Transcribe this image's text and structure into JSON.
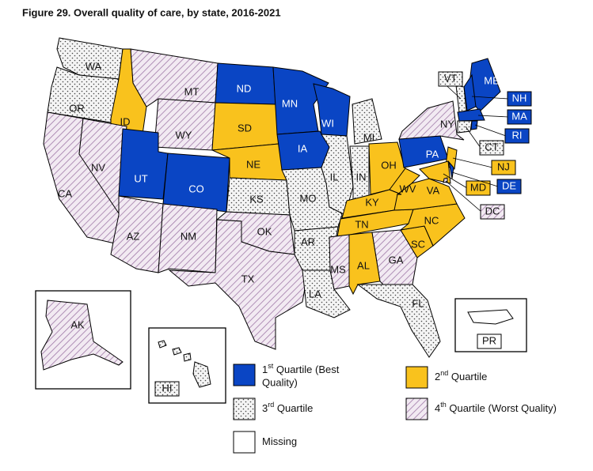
{
  "title": "Figure 29. Overall quality of care, by state, 2016-2021",
  "legend": [
    {
      "num": "1",
      "sup": "st",
      "text": " Quartile (Best",
      "text2": "Quality)",
      "style": "blue"
    },
    {
      "num": "2",
      "sup": "nd",
      "text": " Quartile",
      "style": "yellow"
    },
    {
      "num": "3",
      "sup": "rd",
      "text": " Quartile",
      "style": "dots"
    },
    {
      "num": "4",
      "sup": "th",
      "text": " Quartile (Worst Quality)",
      "style": "hatch"
    },
    {
      "text": "Missing",
      "style": "none"
    }
  ],
  "states": [
    {
      "label": "WA",
      "legend_item": 2
    },
    {
      "label": "OR",
      "legend_item": 2
    },
    {
      "label": "ID",
      "legend_item": 1
    },
    {
      "label": "MT",
      "legend_item": 3
    },
    {
      "label": "WY",
      "legend_item": 3
    },
    {
      "label": "CA",
      "legend_item": 3
    },
    {
      "label": "NV",
      "legend_item": 3
    },
    {
      "label": "UT",
      "legend_item": 0
    },
    {
      "label": "CO",
      "legend_item": 0
    },
    {
      "label": "AZ",
      "legend_item": 3
    },
    {
      "label": "NM",
      "legend_item": 3
    },
    {
      "label": "ND",
      "legend_item": 0
    },
    {
      "label": "SD",
      "legend_item": 1
    },
    {
      "label": "NE",
      "legend_item": 1
    },
    {
      "label": "KS",
      "legend_item": 2
    },
    {
      "label": "OK",
      "legend_item": 3
    },
    {
      "label": "TX",
      "legend_item": 3
    },
    {
      "label": "MN",
      "legend_item": 0
    },
    {
      "label": "IA",
      "legend_item": 0
    },
    {
      "label": "MO",
      "legend_item": 2
    },
    {
      "label": "AR",
      "legend_item": 2
    },
    {
      "label": "LA",
      "legend_item": 2
    },
    {
      "label": "WI",
      "legend_item": 0
    },
    {
      "label": "IL",
      "legend_item": 2
    },
    {
      "label": "MI",
      "legend_item": 2
    },
    {
      "label": "IN",
      "legend_item": 2
    },
    {
      "label": "OH",
      "legend_item": 1
    },
    {
      "label": "KY",
      "legend_item": 1
    },
    {
      "label": "TN",
      "legend_item": 1
    },
    {
      "label": "MS",
      "legend_item": 3
    },
    {
      "label": "AL",
      "legend_item": 1
    },
    {
      "label": "GA",
      "legend_item": 3
    },
    {
      "label": "FL",
      "legend_item": 2
    },
    {
      "label": "SC",
      "legend_item": 1
    },
    {
      "label": "NC",
      "legend_item": 1
    },
    {
      "label": "VA",
      "legend_item": 1
    },
    {
      "label": "WV",
      "legend_item": 1
    },
    {
      "label": "PA",
      "legend_item": 0
    },
    {
      "label": "NY",
      "legend_item": 3
    },
    {
      "label": "NJ",
      "legend_item": 1
    },
    {
      "label": "MD",
      "legend_item": 1
    },
    {
      "label": "DE",
      "legend_item": 0
    },
    {
      "label": "DC",
      "legend_item": 3
    },
    {
      "label": "ME",
      "legend_item": 0
    },
    {
      "label": "NH",
      "legend_item": 0
    },
    {
      "label": "VT",
      "legend_item": 2
    },
    {
      "label": "MA",
      "legend_item": 0
    },
    {
      "label": "CT",
      "legend_item": 2
    },
    {
      "label": "RI",
      "legend_item": 0
    },
    {
      "label": "AK",
      "legend_item": 3
    },
    {
      "label": "HI",
      "legend_item": 2
    },
    {
      "label": "PR",
      "legend_item": 4
    }
  ]
}
